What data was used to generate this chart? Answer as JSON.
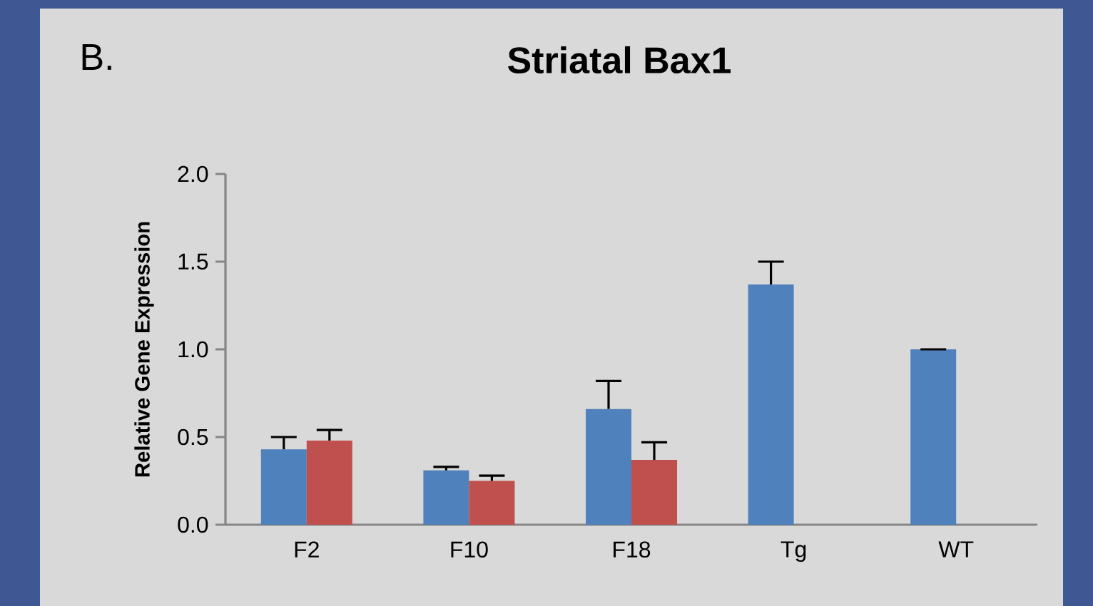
{
  "chart_data": {
    "type": "bar",
    "title": "Striatal Bax1",
    "ylabel": "Relative Gene Expression",
    "annotations": [
      "B."
    ],
    "categories": [
      "F2",
      "F10",
      "F18",
      "Tg",
      "WT"
    ],
    "series": [
      {
        "color": "#4f81bd",
        "values": [
          0.43,
          0.31,
          0.66,
          1.37,
          1.0
        ],
        "errors": [
          [
            0.43,
            0.5
          ],
          [
            0.31,
            0.33
          ],
          [
            0.66,
            0.82
          ],
          [
            1.37,
            1.5
          ],
          [
            1.0,
            1.0
          ]
        ]
      },
      {
        "color": "#c0504d",
        "values": [
          0.48,
          0.25,
          0.37,
          null,
          null
        ],
        "errors": [
          [
            0.48,
            0.54
          ],
          [
            0.25,
            0.28
          ],
          [
            0.37,
            0.47
          ],
          null,
          null
        ]
      }
    ],
    "ylim": [
      0,
      2
    ],
    "yticks": [
      {
        "value": 0,
        "label": "0.0"
      },
      {
        "value": 0.5,
        "label": "0.5"
      },
      {
        "value": 1,
        "label": "1.0"
      },
      {
        "value": 1.5,
        "label": "1.5"
      },
      {
        "value": 2,
        "label": "2.0"
      }
    ]
  }
}
